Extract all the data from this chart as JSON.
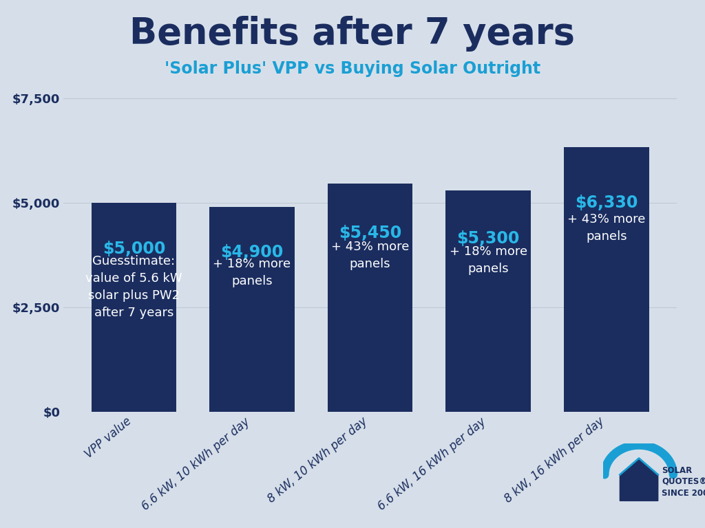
{
  "title": "Benefits after 7 years",
  "subtitle": "'Solar Plus' VPP vs Buying Solar Outright",
  "background_color": "#d6dfe9",
  "bar_color": "#1b2d5f",
  "categories": [
    "VPP value",
    "6.6 kW, 10 kWh per day",
    "8 kW, 10 kWh per day",
    "6.6 kW, 16 kWh per day",
    "8 kW, 16 kWh per day"
  ],
  "values": [
    5000,
    4900,
    5450,
    5300,
    6330
  ],
  "bar_label_values": [
    "$5,000",
    "$4,900",
    "$5,450",
    "$5,300",
    "$6,330"
  ],
  "bar_label_texts": [
    "Guesstimate:\nvalue of 5.6 kW\nsolar plus PW2\nafter 7 years",
    "+ 18% more\npanels",
    "+ 43% more\npanels",
    "+ 18% more\npanels",
    "+ 43% more\npanels"
  ],
  "yticks": [
    0,
    2500,
    5000,
    7500
  ],
  "ytick_labels": [
    "$0",
    "$2,500",
    "$5,000",
    "$7,500"
  ],
  "ylim": [
    0,
    7700
  ],
  "title_color": "#1b2d5f",
  "subtitle_color": "#1a9fd4",
  "bar_label_color_value": "#29b8e8",
  "bar_label_color_text": "#ffffff",
  "ytick_color": "#1b2d5f",
  "grid_color": "#bfc9d6",
  "title_fontsize": 38,
  "subtitle_fontsize": 17,
  "bar_label_fontsize_value": 17,
  "bar_label_fontsize_text": 13,
  "ytick_fontsize": 13,
  "xtick_fontsize": 12
}
